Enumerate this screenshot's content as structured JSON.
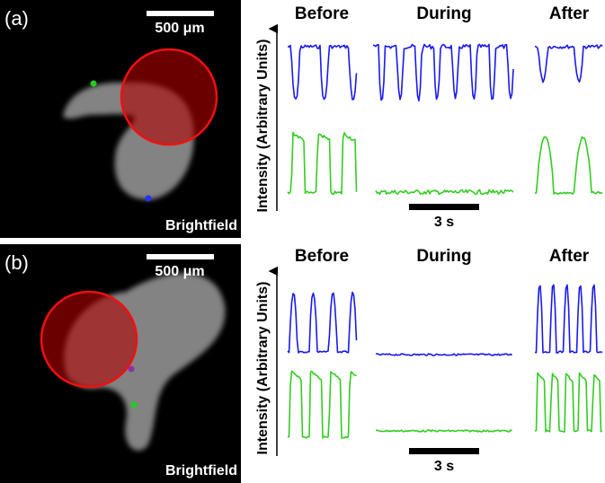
{
  "panels": [
    {
      "label": "(a)",
      "scale_bar": "500 μm",
      "image_label": "Brightfield",
      "phases": [
        "Before",
        "During",
        "After"
      ],
      "y_axis_label": "Intensity (Arbitrary Units)",
      "time_bar": "3 s"
    },
    {
      "label": "(b)",
      "scale_bar": "500 μm",
      "image_label": "Brightfield",
      "phases": [
        "Before",
        "During",
        "After"
      ],
      "y_axis_label": "Intensity (Arbitrary Units)",
      "time_bar": "3 s"
    }
  ]
}
